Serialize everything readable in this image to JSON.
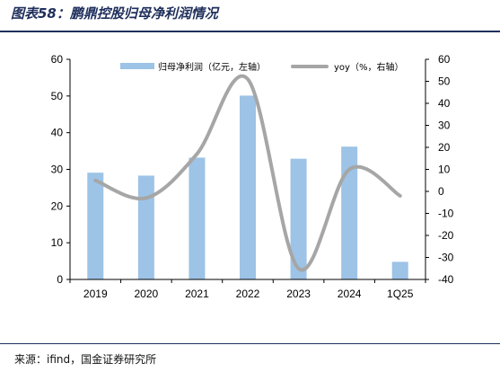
{
  "figure": {
    "title": "图表58：鹏鼎控股归母净利润情况",
    "source": "来源：ifind，国金证券研究所"
  },
  "chart_data": {
    "type": "bar",
    "categories": [
      "2019",
      "2020",
      "2021",
      "2022",
      "2023",
      "2024",
      "1Q25"
    ],
    "series": [
      {
        "name": "归母净利润（亿元，左轴）",
        "type": "bar",
        "axis": "left",
        "color": "#9dc3e6",
        "values": [
          29.1,
          28.3,
          33.2,
          50.1,
          32.9,
          36.2,
          4.8
        ]
      },
      {
        "name": "yoy（%，右轴）",
        "type": "line",
        "axis": "right",
        "color": "#a6a6a6",
        "values": [
          5,
          -3,
          17,
          51,
          -35,
          10,
          -2
        ]
      }
    ],
    "y_left": {
      "min": 0,
      "max": 60,
      "step": 10
    },
    "y_right": {
      "min": -40,
      "max": 60,
      "step": 10
    },
    "legend_position": "top",
    "grid": false
  }
}
